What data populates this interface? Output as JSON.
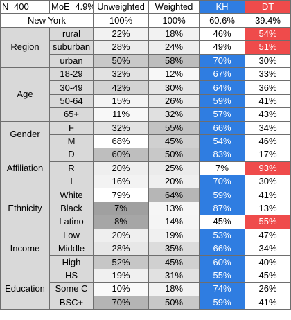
{
  "header": {
    "n": "N=400",
    "moe": "MoE=4.9%",
    "unweighted": "Unweighted",
    "weighted": "Weighted",
    "kh": "KH",
    "dt": "DT"
  },
  "total": {
    "label": "New York",
    "unweighted": "100%",
    "weighted": "100%",
    "kh": "60.6%",
    "dt": "39.4%"
  },
  "colors": {
    "kh_blue": "#2f7de1",
    "dt_red": "#ef4b4b"
  },
  "groups": [
    {
      "name": "Region",
      "rows": [
        {
          "label": "rural",
          "unweighted": "22%",
          "weighted": "18%",
          "kh": "46%",
          "dt": "54%",
          "winner": "dt",
          "uw_shade": "#f2f2f2",
          "w_shade": "#f2f2f2"
        },
        {
          "label": "suburban",
          "unweighted": "28%",
          "weighted": "24%",
          "kh": "49%",
          "dt": "51%",
          "winner": "dt",
          "uw_shade": "#ececec",
          "w_shade": "#ededed"
        },
        {
          "label": "urban",
          "unweighted": "50%",
          "weighted": "58%",
          "kh": "70%",
          "dt": "30%",
          "winner": "kh",
          "uw_shade": "#c8c8c8",
          "w_shade": "#bdbdbd"
        }
      ]
    },
    {
      "name": "Age",
      "rows": [
        {
          "label": "18-29",
          "unweighted": "32%",
          "weighted": "12%",
          "kh": "67%",
          "dt": "33%",
          "winner": "kh",
          "uw_shade": "#e2e2e2",
          "w_shade": "#f8f8f8"
        },
        {
          "label": "30-49",
          "unweighted": "42%",
          "weighted": "30%",
          "kh": "64%",
          "dt": "36%",
          "winner": "kh",
          "uw_shade": "#d2d2d2",
          "w_shade": "#e4e4e4"
        },
        {
          "label": "50-64",
          "unweighted": "15%",
          "weighted": "26%",
          "kh": "59%",
          "dt": "41%",
          "winner": "kh",
          "uw_shade": "#f4f4f4",
          "w_shade": "#e8e8e8"
        },
        {
          "label": "65+",
          "unweighted": "11%",
          "weighted": "32%",
          "kh": "57%",
          "dt": "43%",
          "winner": "kh",
          "uw_shade": "#f8f8f8",
          "w_shade": "#e0e0e0"
        }
      ]
    },
    {
      "name": "Gender",
      "rows": [
        {
          "label": "F",
          "unweighted": "32%",
          "weighted": "55%",
          "kh": "66%",
          "dt": "34%",
          "winner": "kh",
          "uw_shade": "#e2e2e2",
          "w_shade": "#c2c2c2"
        },
        {
          "label": "M",
          "unweighted": "68%",
          "weighted": "45%",
          "kh": "54%",
          "dt": "46%",
          "winner": "kh",
          "uw_shade": "#ffffff",
          "w_shade": "#d0d0d0"
        }
      ]
    },
    {
      "name": "Affiliation",
      "rows": [
        {
          "label": "D",
          "unweighted": "60%",
          "weighted": "50%",
          "kh": "83%",
          "dt": "17%",
          "winner": "kh",
          "uw_shade": "#bebebe",
          "w_shade": "#c8c8c8"
        },
        {
          "label": "R",
          "unweighted": "20%",
          "weighted": "25%",
          "kh": "7%",
          "dt": "93%",
          "winner": "dt",
          "uw_shade": "#efefef",
          "w_shade": "#ebebeb"
        },
        {
          "label": "I",
          "unweighted": "16%",
          "weighted": "20%",
          "kh": "70%",
          "dt": "30%",
          "winner": "kh",
          "uw_shade": "#f3f3f3",
          "w_shade": "#efefef"
        }
      ]
    },
    {
      "name": "Ethnicity",
      "rows": [
        {
          "label": "White",
          "unweighted": "79%",
          "weighted": "64%",
          "kh": "59%",
          "dt": "41%",
          "winner": "kh",
          "uw_shade": "#ffffff",
          "w_shade": "#b6b6b6"
        },
        {
          "label": "Black",
          "unweighted": "7%",
          "weighted": "13%",
          "kh": "87%",
          "dt": "13%",
          "winner": "kh",
          "uw_shade": "#a0a0a0",
          "w_shade": "#f6f6f6"
        },
        {
          "label": "Latino",
          "unweighted": "8%",
          "weighted": "14%",
          "kh": "45%",
          "dt": "55%",
          "winner": "dt",
          "uw_shade": "#a6a6a6",
          "w_shade": "#f5f5f5"
        }
      ]
    },
    {
      "name": "Income",
      "rows": [
        {
          "label": "Low",
          "unweighted": "20%",
          "weighted": "19%",
          "kh": "53%",
          "dt": "47%",
          "winner": "kh",
          "uw_shade": "#efefef",
          "w_shade": "#f0f0f0"
        },
        {
          "label": "Middle",
          "unweighted": "28%",
          "weighted": "35%",
          "kh": "66%",
          "dt": "34%",
          "winner": "kh",
          "uw_shade": "#e7e7e7",
          "w_shade": "#dcdcdc"
        },
        {
          "label": "High",
          "unweighted": "52%",
          "weighted": "45%",
          "kh": "60%",
          "dt": "40%",
          "winner": "kh",
          "uw_shade": "#c6c6c6",
          "w_shade": "#d0d0d0"
        }
      ]
    },
    {
      "name": "Education",
      "rows": [
        {
          "label": "HS",
          "unweighted": "19%",
          "weighted": "31%",
          "kh": "55%",
          "dt": "45%",
          "winner": "kh",
          "uw_shade": "#f0f0f0",
          "w_shade": "#e1e1e1"
        },
        {
          "label": "Some C",
          "unweighted": "10%",
          "weighted": "18%",
          "kh": "74%",
          "dt": "26%",
          "winner": "kh",
          "uw_shade": "#f9f9f9",
          "w_shade": "#f2f2f2"
        },
        {
          "label": "BSC+",
          "unweighted": "70%",
          "weighted": "50%",
          "kh": "59%",
          "dt": "41%",
          "winner": "kh",
          "uw_shade": "#b4b4b4",
          "w_shade": "#c8c8c8"
        }
      ]
    }
  ]
}
